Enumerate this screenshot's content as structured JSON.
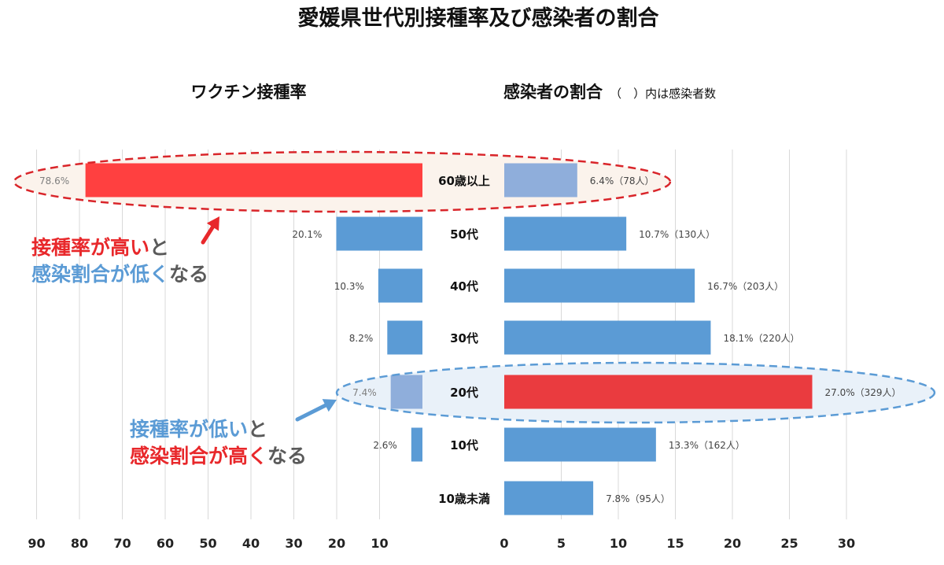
{
  "title": "愛媛県世代別接種率及び感染者の割合",
  "left_panel": {
    "title": "ワクチン接種率"
  },
  "right_panel": {
    "title": "感染者の割合",
    "note": "（　）内は感染者数"
  },
  "callouts": {
    "top": {
      "line1": [
        {
          "text": "接種率が高い",
          "color": "#e8282b"
        },
        {
          "text": "と",
          "color": "#5a5a5a"
        }
      ],
      "line2": [
        {
          "text": "感染割合が低く",
          "color": "#5b9bd5"
        },
        {
          "text": "なる",
          "color": "#5a5a5a"
        }
      ]
    },
    "bottom": {
      "line1": [
        {
          "text": "接種率が低い",
          "color": "#5b9bd5"
        },
        {
          "text": "と",
          "color": "#5a5a5a"
        }
      ],
      "line2": [
        {
          "text": "感染割合が高く",
          "color": "#e8282b"
        },
        {
          "text": "なる",
          "color": "#5a5a5a"
        }
      ]
    }
  },
  "colors": {
    "bar_default": "#5b9bd5",
    "bar_light": "#8faedb",
    "bar_highlight": "#ff4040",
    "bar_highlight_right": "#ea3b3f",
    "arrow_red": "#e8282b",
    "arrow_blue": "#5b9bd5",
    "ellipse_red": "#d9252a",
    "ellipse_blue": "#5b9bd5"
  },
  "chart_data": [
    {
      "type": "bar",
      "orientation": "horizontal",
      "direction": "right-to-left",
      "title": "ワクチン接種率",
      "categories": [
        "60歳以上",
        "50代",
        "40代",
        "30代",
        "20代",
        "10代",
        "10歳未満"
      ],
      "values": [
        78.6,
        20.1,
        10.3,
        8.2,
        7.4,
        2.6,
        null
      ],
      "data_labels": [
        "78.6%",
        "20.1%",
        "10.3%",
        "8.2%",
        "7.4%",
        "2.6%",
        ""
      ],
      "xlim": [
        0,
        90
      ],
      "ticks": [
        90,
        80,
        70,
        60,
        50,
        40,
        30,
        20,
        10
      ],
      "grid": true
    },
    {
      "type": "bar",
      "orientation": "horizontal",
      "title": "感染者の割合",
      "categories": [
        "60歳以上",
        "50代",
        "40代",
        "30代",
        "20代",
        "10代",
        "10歳未満"
      ],
      "values": [
        6.4,
        10.7,
        16.7,
        18.1,
        27.0,
        13.3,
        7.8
      ],
      "counts": [
        78,
        130,
        203,
        220,
        329,
        162,
        95
      ],
      "data_labels": [
        "6.4%（78人）",
        "10.7%（130人）",
        "16.7%（203人）",
        "18.1%（220人）",
        "27.0%（329人）",
        "13.3%（162人）",
        "7.8%（95人）"
      ],
      "xlim": [
        0,
        30
      ],
      "ticks": [
        0,
        5,
        10,
        15,
        20,
        25,
        30
      ],
      "grid": true
    }
  ]
}
